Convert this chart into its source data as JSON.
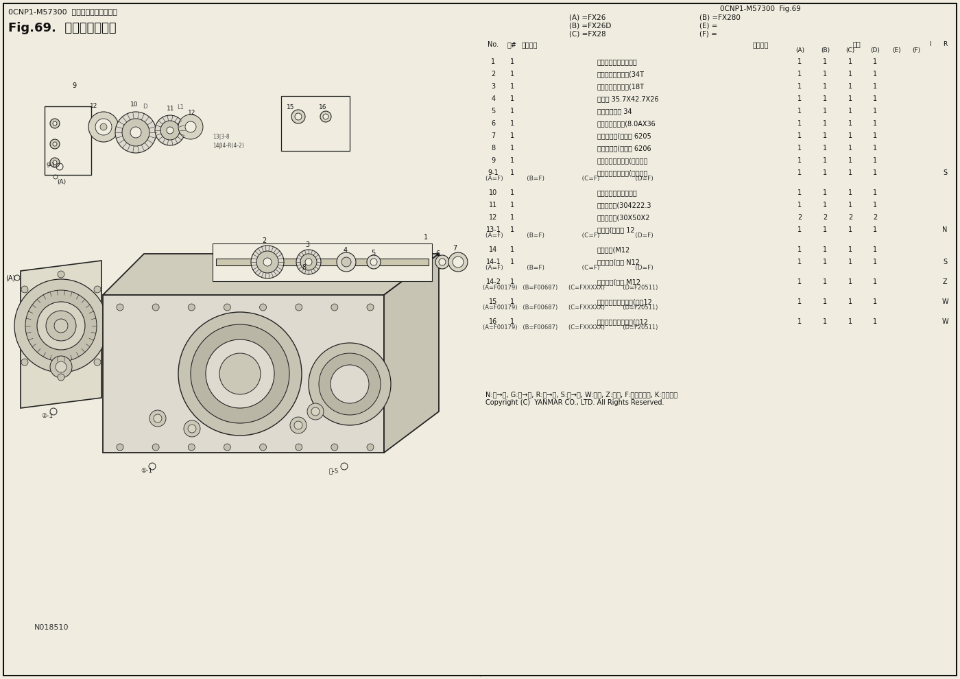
{
  "title_line1": "0CNP1-M57300  トランスミッション部",
  "title_line2": "Fig.69.  副変速シャフト",
  "top_right_ref1": "0CNP1-M57300  Fig.69",
  "legend_left": [
    "(A) =FX26",
    "(B) =FX26D",
    "(C) =FX28"
  ],
  "legend_right": [
    "(B) =FX280",
    "(E) =",
    "(F) ="
  ],
  "footer_note": "N:旧→新, G:旧→新, R:旧→新, S:旧→新, W:追加, Z:廃止, F:セット互換, K:個数変更",
  "copyright": "Copyright (C)  YANMAR CO., LTD. All Rights Reserved.",
  "watermark": "N018510",
  "col_hdr_no": "No.",
  "col_hdr_qty": "バ#",
  "col_hdr_pn": "部品番号",
  "col_hdr_name": "部品名称",
  "col_hdr_qty2": "数量",
  "bg_color": "#f0ede0",
  "line_color": "#111111",
  "text_color": "#111111",
  "rows": [
    {
      "no": "1",
      "qty": "1",
      "name": "リダクションシャフト",
      "A": "1",
      "B": "1",
      "C": "1",
      "D": "1",
      "E": "",
      "F": "",
      "R": "",
      "thick_above": true,
      "sub": null
    },
    {
      "no": "2",
      "qty": "1",
      "name": "リダクションギヤ(34T",
      "A": "1",
      "B": "1",
      "C": "1",
      "D": "1",
      "E": "",
      "F": "",
      "R": "",
      "thick_above": false,
      "sub": null
    },
    {
      "no": "3",
      "qty": "1",
      "name": "リダクションギヤ(18T",
      "A": "1",
      "B": "1",
      "C": "1",
      "D": "1",
      "E": "",
      "F": "",
      "R": "",
      "thick_above": false,
      "sub": null,
      "uline": true
    },
    {
      "no": "4",
      "qty": "1",
      "name": "カラー 35.7X42.7X26",
      "A": "1",
      "B": "1",
      "C": "1",
      "D": "1",
      "E": "",
      "F": "",
      "R": "",
      "thick_above": true,
      "sub": null
    },
    {
      "no": "5",
      "qty": "1",
      "name": "トメワッシャ 34",
      "A": "1",
      "B": "1",
      "C": "1",
      "D": "1",
      "E": "",
      "F": "",
      "R": "",
      "thick_above": false,
      "sub": null
    },
    {
      "no": "6",
      "qty": "1",
      "name": "スプリングビン(8.0AX36",
      "A": "1",
      "B": "1",
      "C": "1",
      "D": "1",
      "E": "",
      "F": "",
      "R": "",
      "thick_above": false,
      "sub": null,
      "uline": true
    },
    {
      "no": "7",
      "qty": "1",
      "name": "ベアリング(ボール 6205",
      "A": "1",
      "B": "1",
      "C": "1",
      "D": "1",
      "E": "",
      "F": "",
      "R": "",
      "thick_above": true,
      "sub": null
    },
    {
      "no": "8",
      "qty": "1",
      "name": "ベアリング(ボール 6206",
      "A": "1",
      "B": "1",
      "C": "1",
      "D": "1",
      "E": "",
      "F": "",
      "R": "",
      "thick_above": false,
      "sub": null
    },
    {
      "no": "9",
      "qty": "1",
      "name": "リバースシャフト(アイドル",
      "A": "1",
      "B": "1",
      "C": "1",
      "D": "1",
      "E": "",
      "F": "",
      "R": "",
      "thick_above": false,
      "sub": null
    },
    {
      "no": "9-1",
      "qty": "1",
      "name": "リバースシャフト(アイドル",
      "A": "1",
      "B": "1",
      "C": "1",
      "D": "1",
      "E": "",
      "F": "",
      "R": "S",
      "thick_above": false,
      "sub": "(A=F)            (B=F)                   (C=F)                  (D=F)"
    },
    {
      "no": "10",
      "qty": "1",
      "name": "リバースアイドルギヤ",
      "A": "1",
      "B": "1",
      "C": "1",
      "D": "1",
      "E": "",
      "F": "",
      "R": "",
      "thick_above": true,
      "sub": null
    },
    {
      "no": "11",
      "qty": "1",
      "name": "ベアリング(304222.3",
      "A": "1",
      "B": "1",
      "C": "1",
      "D": "1",
      "E": "",
      "F": "",
      "R": "",
      "thick_above": false,
      "sub": null
    },
    {
      "no": "12",
      "qty": "1",
      "name": "ワッシャー(30X50X2",
      "A": "2",
      "B": "2",
      "C": "2",
      "D": "2",
      "E": "",
      "F": "",
      "R": "",
      "thick_above": false,
      "sub": null
    },
    {
      "no": "13-1",
      "qty": "1",
      "name": "ザガネ(ミガキ 12",
      "A": "1",
      "B": "1",
      "C": "1",
      "D": "1",
      "E": "",
      "F": "",
      "R": "N",
      "thick_above": false,
      "sub": "(A=F)            (B=F)                   (C=F)                  (D=F)"
    },
    {
      "no": "14",
      "qty": "1",
      "name": "ソケット(M12",
      "A": "1",
      "B": "1",
      "C": "1",
      "D": "1",
      "E": "",
      "F": "",
      "R": "",
      "thick_above": true,
      "sub": null
    },
    {
      "no": "14-1",
      "qty": "1",
      "name": "ソケット(ボン N12",
      "A": "1",
      "B": "1",
      "C": "1",
      "D": "1",
      "E": "",
      "F": "",
      "R": "S",
      "thick_above": false,
      "sub": "(A=F)            (B=F)                   (C=F)                  (D=F)"
    },
    {
      "no": "14-2",
      "qty": "1",
      "name": "ソケット(ボン M12",
      "A": "1",
      "B": "1",
      "C": "1",
      "D": "1",
      "E": "",
      "F": "",
      "R": "Z",
      "thick_above": true,
      "sub": "(A=F00179)   (B=F00687)      (C=FXXXXX)          (D=F20511)",
      "sub2": true
    },
    {
      "no": "15",
      "qty": "1",
      "name": "ハードロックナット(ウエ12",
      "A": "1",
      "B": "1",
      "C": "1",
      "D": "1",
      "E": "",
      "F": "",
      "R": "W",
      "thick_above": true,
      "sub": "(A=F00179)   (B=F00687)      (C=FXXXXX)          (D=F20511)",
      "sub2": true
    },
    {
      "no": "16",
      "qty": "1",
      "name": "ハードロックナット(シ12",
      "A": "1",
      "B": "1",
      "C": "1",
      "D": "1",
      "E": "",
      "F": "",
      "R": "W",
      "thick_above": false,
      "sub": "(A=F00179)   (B=F00687)      (C=FXXXXX)          (D=F20511)",
      "sub2": true
    }
  ]
}
